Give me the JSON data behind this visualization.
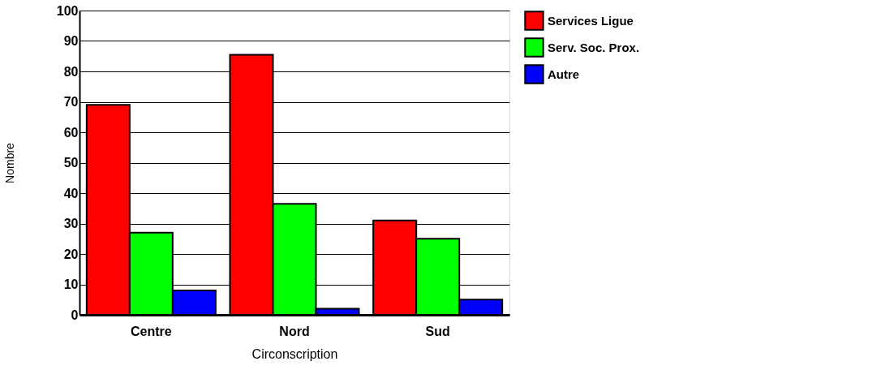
{
  "chart_data": {
    "type": "bar",
    "xlabel": "Circonscription",
    "ylabel": "Nombre",
    "categories": [
      "Centre",
      "Nord",
      "Sud"
    ],
    "series": [
      {
        "name": "Services Ligue",
        "color": "#ff0000",
        "values": [
          69,
          85.5,
          31
        ]
      },
      {
        "name": "Serv. Soc. Prox.",
        "color": "#00ff00",
        "values": [
          27,
          36.5,
          25
        ]
      },
      {
        "name": "Autre",
        "color": "#0000ff",
        "values": [
          8,
          2,
          5
        ]
      }
    ],
    "ylim": [
      0,
      100
    ],
    "yticks": [
      0,
      10,
      20,
      30,
      40,
      50,
      60,
      70,
      80,
      90,
      100
    ],
    "grid": "y",
    "legend": "right"
  }
}
